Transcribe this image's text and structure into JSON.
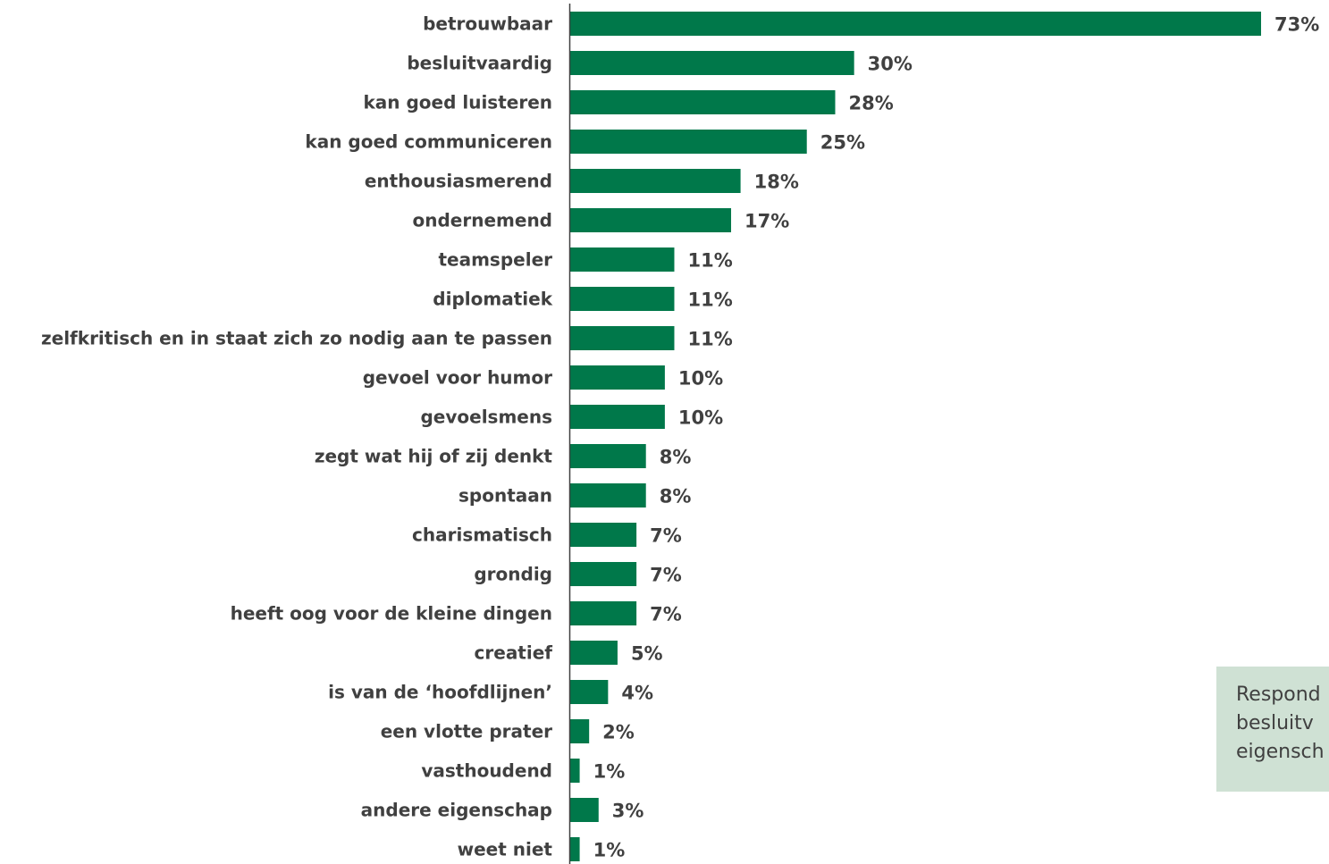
{
  "chart_data": {
    "type": "bar",
    "orientation": "horizontal",
    "categories": [
      "betrouwbaar",
      "besluitvaardig",
      "kan goed luisteren",
      "kan goed communiceren",
      "enthousiasmerend",
      "ondernemend",
      "teamspeler",
      "diplomatiek",
      "zelfkritisch en in staat zich zo nodig aan te passen",
      "gevoel voor humor",
      "gevoelsmens",
      "zegt wat hij of zij denkt",
      "spontaan",
      "charismatisch",
      "grondig",
      "heeft oog voor de kleine dingen",
      "creatief",
      "is van de ‘hoofdlijnen’",
      "een vlotte prater",
      "vasthoudend",
      "andere eigenschap",
      "weet niet"
    ],
    "values": [
      73,
      30,
      28,
      25,
      18,
      17,
      11,
      11,
      11,
      10,
      10,
      8,
      8,
      7,
      7,
      7,
      5,
      4,
      2,
      1,
      3,
      1
    ],
    "value_labels": [
      "73%",
      "30%",
      "28%",
      "25%",
      "18%",
      "17%",
      "11%",
      "11%",
      "11%",
      "10%",
      "10%",
      "8%",
      "8%",
      "7%",
      "7%",
      "7%",
      "5%",
      "4%",
      "2%",
      "1%",
      "3%",
      "1%"
    ],
    "unit": "%",
    "xlim": [
      0,
      73
    ],
    "grid": false,
    "legend": "none",
    "bar_color": "#00784a",
    "label_color": "#404040"
  },
  "note": {
    "lines": [
      "Respond",
      "besluitv",
      "eigensch"
    ],
    "background": "#cfe1d4"
  }
}
